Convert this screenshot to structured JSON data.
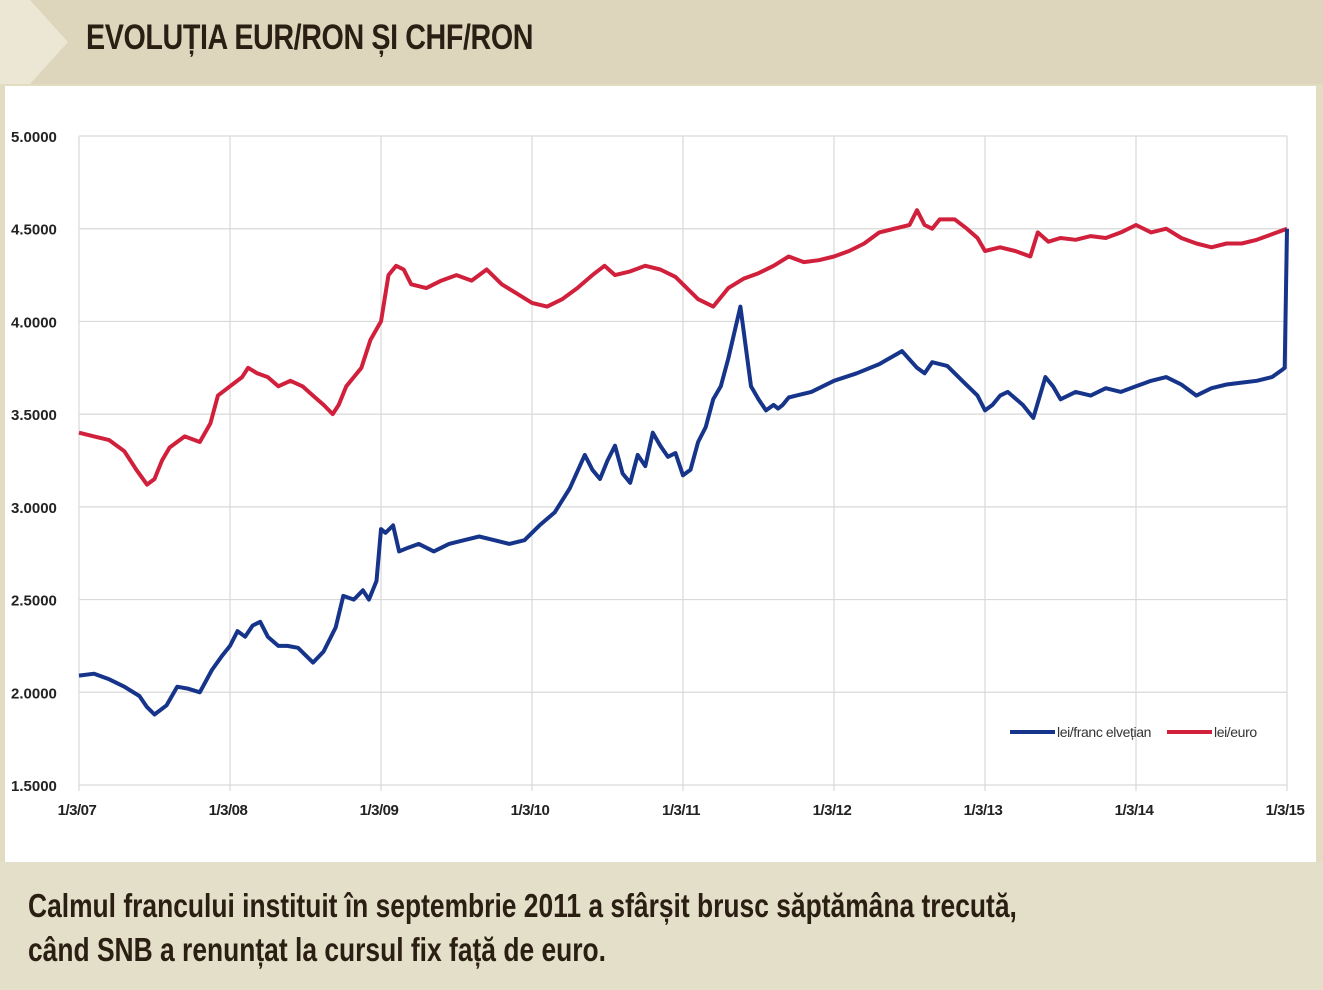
{
  "header": {
    "title": "EVOLUȚIA EUR/RON ȘI CHF/RON"
  },
  "footer": {
    "caption_line1": "Calmul francului instituit în septembrie 2011 a sfârșit brusc săptămâna trecută,",
    "caption_line2": "când SNB a renunțat la cursul fix față de euro."
  },
  "colors": {
    "chf": "#16358a",
    "eur": "#d1203b",
    "grid": "#d9d9d9",
    "header_bg": "#ddd6bc"
  },
  "chart_data": {
    "type": "line",
    "title": "",
    "xlabel": "",
    "ylabel": "",
    "ylim": [
      1.5,
      5.0
    ],
    "yticks": [
      "5.0000",
      "4.5000",
      "4.0000",
      "3.5000",
      "3.0000",
      "2.5000",
      "2.0000",
      "1.5000"
    ],
    "xticks": [
      "1/3/07",
      "1/3/08",
      "1/3/09",
      "1/3/10",
      "1/3/11",
      "1/3/12",
      "1/3/13",
      "1/3/14",
      "1/3/15"
    ],
    "grid": true,
    "legend_position": "bottom-right",
    "x_format": "year.fraction (2007.0 = 1/3/07)",
    "series": [
      {
        "name": "lei/franc elvețian",
        "key": "chf",
        "x": [
          2007.0,
          2007.1,
          2007.2,
          2007.3,
          2007.4,
          2007.45,
          2007.5,
          2007.58,
          2007.65,
          2007.72,
          2007.8,
          2007.88,
          2007.95,
          2008.0,
          2008.05,
          2008.1,
          2008.15,
          2008.2,
          2008.25,
          2008.32,
          2008.38,
          2008.45,
          2008.55,
          2008.62,
          2008.7,
          2008.75,
          2008.82,
          2008.88,
          2008.92,
          2008.97,
          2009.0,
          2009.03,
          2009.08,
          2009.12,
          2009.18,
          2009.25,
          2009.35,
          2009.45,
          2009.55,
          2009.65,
          2009.75,
          2009.85,
          2009.95,
          2010.05,
          2010.15,
          2010.25,
          2010.35,
          2010.4,
          2010.45,
          2010.5,
          2010.55,
          2010.6,
          2010.65,
          2010.7,
          2010.75,
          2010.8,
          2010.85,
          2010.9,
          2010.95,
          2011.0,
          2011.05,
          2011.1,
          2011.15,
          2011.2,
          2011.25,
          2011.3,
          2011.38,
          2011.45,
          2011.5,
          2011.55,
          2011.6,
          2011.63,
          2011.66,
          2011.7,
          2011.75,
          2011.85,
          2012.0,
          2012.15,
          2012.3,
          2012.45,
          2012.55,
          2012.6,
          2012.65,
          2012.75,
          2012.85,
          2012.95,
          2013.0,
          2013.05,
          2013.1,
          2013.15,
          2013.25,
          2013.32,
          2013.4,
          2013.45,
          2013.5,
          2013.6,
          2013.7,
          2013.8,
          2013.9,
          2014.0,
          2014.1,
          2014.2,
          2014.3,
          2014.4,
          2014.5,
          2014.6,
          2014.7,
          2014.8,
          2014.9,
          2014.97,
          2014.985,
          2015.0
        ],
        "y": [
          2.09,
          2.1,
          2.07,
          2.03,
          1.98,
          1.92,
          1.88,
          1.93,
          2.03,
          2.02,
          2.0,
          2.12,
          2.2,
          2.25,
          2.33,
          2.3,
          2.36,
          2.38,
          2.3,
          2.25,
          2.25,
          2.24,
          2.16,
          2.22,
          2.35,
          2.52,
          2.5,
          2.55,
          2.5,
          2.6,
          2.88,
          2.86,
          2.9,
          2.76,
          2.78,
          2.8,
          2.76,
          2.8,
          2.82,
          2.84,
          2.82,
          2.8,
          2.82,
          2.9,
          2.97,
          3.1,
          3.28,
          3.2,
          3.15,
          3.25,
          3.33,
          3.18,
          3.13,
          3.28,
          3.22,
          3.4,
          3.33,
          3.27,
          3.29,
          3.17,
          3.2,
          3.35,
          3.43,
          3.58,
          3.65,
          3.8,
          4.08,
          3.65,
          3.58,
          3.52,
          3.55,
          3.53,
          3.55,
          3.59,
          3.6,
          3.62,
          3.68,
          3.72,
          3.77,
          3.84,
          3.75,
          3.72,
          3.78,
          3.76,
          3.68,
          3.6,
          3.52,
          3.55,
          3.6,
          3.62,
          3.55,
          3.48,
          3.7,
          3.65,
          3.58,
          3.62,
          3.6,
          3.64,
          3.62,
          3.65,
          3.68,
          3.7,
          3.66,
          3.6,
          3.64,
          3.66,
          3.67,
          3.68,
          3.7,
          3.74,
          3.75,
          4.5
        ]
      },
      {
        "name": "lei/euro",
        "key": "eur",
        "x": [
          2007.0,
          2007.1,
          2007.2,
          2007.3,
          2007.38,
          2007.45,
          2007.5,
          2007.55,
          2007.6,
          2007.7,
          2007.8,
          2007.87,
          2007.92,
          2008.0,
          2008.08,
          2008.12,
          2008.18,
          2008.25,
          2008.32,
          2008.4,
          2008.48,
          2008.55,
          2008.62,
          2008.68,
          2008.72,
          2008.77,
          2008.82,
          2008.87,
          2008.93,
          2009.0,
          2009.05,
          2009.1,
          2009.15,
          2009.2,
          2009.3,
          2009.4,
          2009.5,
          2009.6,
          2009.7,
          2009.8,
          2009.9,
          2010.0,
          2010.1,
          2010.2,
          2010.3,
          2010.4,
          2010.48,
          2010.55,
          2010.65,
          2010.75,
          2010.85,
          2010.95,
          2011.0,
          2011.1,
          2011.2,
          2011.3,
          2011.4,
          2011.5,
          2011.6,
          2011.7,
          2011.8,
          2011.9,
          2012.0,
          2012.1,
          2012.2,
          2012.3,
          2012.4,
          2012.5,
          2012.55,
          2012.6,
          2012.65,
          2012.7,
          2012.8,
          2012.88,
          2012.95,
          2013.0,
          2013.1,
          2013.2,
          2013.3,
          2013.35,
          2013.42,
          2013.5,
          2013.6,
          2013.7,
          2013.8,
          2013.9,
          2014.0,
          2014.1,
          2014.2,
          2014.3,
          2014.4,
          2014.5,
          2014.6,
          2014.7,
          2014.8,
          2014.9,
          2015.0
        ],
        "y": [
          3.4,
          3.38,
          3.36,
          3.3,
          3.2,
          3.12,
          3.15,
          3.25,
          3.32,
          3.38,
          3.35,
          3.45,
          3.6,
          3.65,
          3.7,
          3.75,
          3.72,
          3.7,
          3.65,
          3.68,
          3.65,
          3.6,
          3.55,
          3.5,
          3.55,
          3.65,
          3.7,
          3.75,
          3.9,
          4.0,
          4.25,
          4.3,
          4.28,
          4.2,
          4.18,
          4.22,
          4.25,
          4.22,
          4.28,
          4.2,
          4.15,
          4.1,
          4.08,
          4.12,
          4.18,
          4.25,
          4.3,
          4.25,
          4.27,
          4.3,
          4.28,
          4.24,
          4.2,
          4.12,
          4.08,
          4.18,
          4.23,
          4.26,
          4.3,
          4.35,
          4.32,
          4.33,
          4.35,
          4.38,
          4.42,
          4.48,
          4.5,
          4.52,
          4.6,
          4.52,
          4.5,
          4.55,
          4.55,
          4.5,
          4.45,
          4.38,
          4.4,
          4.38,
          4.35,
          4.48,
          4.43,
          4.45,
          4.44,
          4.46,
          4.45,
          4.48,
          4.52,
          4.48,
          4.5,
          4.45,
          4.42,
          4.4,
          4.42,
          4.42,
          4.44,
          4.47,
          4.5
        ]
      }
    ]
  }
}
